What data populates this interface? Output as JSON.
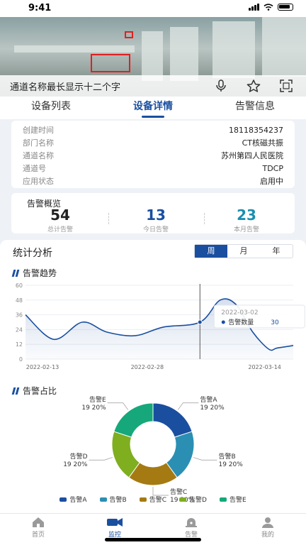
{
  "status_bar": {
    "time": "9:41"
  },
  "video": {
    "channel_name": "通道名称最长显示十二个字",
    "icons": [
      "microphone-icon",
      "star-icon",
      "fullscreen-icon"
    ]
  },
  "tabs": [
    {
      "label": "设备列表",
      "active": false
    },
    {
      "label": "设备详情",
      "active": true
    },
    {
      "label": "告警信息",
      "active": false
    }
  ],
  "device_info": [
    {
      "key": "创建时间",
      "value": "18118354237"
    },
    {
      "key": "部门名称",
      "value": "CT核磁共振"
    },
    {
      "key": "通道名称",
      "value": "苏州第四人民医院"
    },
    {
      "key": "通道号",
      "value": "TDCP"
    },
    {
      "key": "应用状态",
      "value": "启用中"
    }
  ],
  "alarm_overview": {
    "title": "告警概览",
    "stats": [
      {
        "value": "54",
        "label": "总计告警",
        "color": "#222222"
      },
      {
        "value": "13",
        "label": "今日告警",
        "color": "#1a4fa0"
      },
      {
        "value": "23",
        "label": "本月告警",
        "color": "#1a8fb0"
      }
    ]
  },
  "stats": {
    "title": "统计分析",
    "periods": [
      {
        "label": "周",
        "active": true
      },
      {
        "label": "月",
        "active": false
      },
      {
        "label": "年",
        "active": false
      }
    ],
    "trend_title": "告警趋势",
    "pie_title": "告警占比"
  },
  "chart_data": [
    {
      "type": "line",
      "title": "告警趋势",
      "ylim": [
        0,
        60
      ],
      "yticks": [
        0,
        12,
        24,
        36,
        48,
        60
      ],
      "x_labels": [
        "2022-02-13",
        "2022-02-28",
        "2022-03-14"
      ],
      "series": [
        {
          "name": "告警数量",
          "x": [
            0,
            3.5,
            7,
            10,
            13.5,
            17,
            21.5,
            24,
            26,
            28,
            30,
            31,
            33
          ],
          "values": [
            36,
            16,
            30,
            22,
            19,
            26,
            30,
            48,
            44,
            22,
            8,
            9,
            11
          ],
          "color": "#1a4fa0"
        }
      ],
      "tooltip": {
        "date": "2022-03-02",
        "series": "告警数量",
        "value": 30
      }
    },
    {
      "type": "pie",
      "title": "告警占比",
      "slices": [
        {
          "name": "告警A",
          "value": 19,
          "percent": "20%",
          "color": "#1a4fa0"
        },
        {
          "name": "告警B",
          "value": 19,
          "percent": "20%",
          "color": "#2b8fb3"
        },
        {
          "name": "告警C",
          "value": 19,
          "percent": "20%",
          "color": "#a67a12"
        },
        {
          "name": "告警D",
          "value": 19,
          "percent": "20%",
          "color": "#7fae1f"
        },
        {
          "name": "告警E",
          "value": 19,
          "percent": "20%",
          "color": "#16a87a"
        }
      ]
    }
  ],
  "bottom_nav": [
    {
      "label": "首页",
      "icon": "home-icon",
      "active": false
    },
    {
      "label": "监控",
      "icon": "camera-icon",
      "active": true
    },
    {
      "label": "告警",
      "icon": "alarm-icon",
      "active": false
    },
    {
      "label": "我的",
      "icon": "user-icon",
      "active": false
    }
  ]
}
